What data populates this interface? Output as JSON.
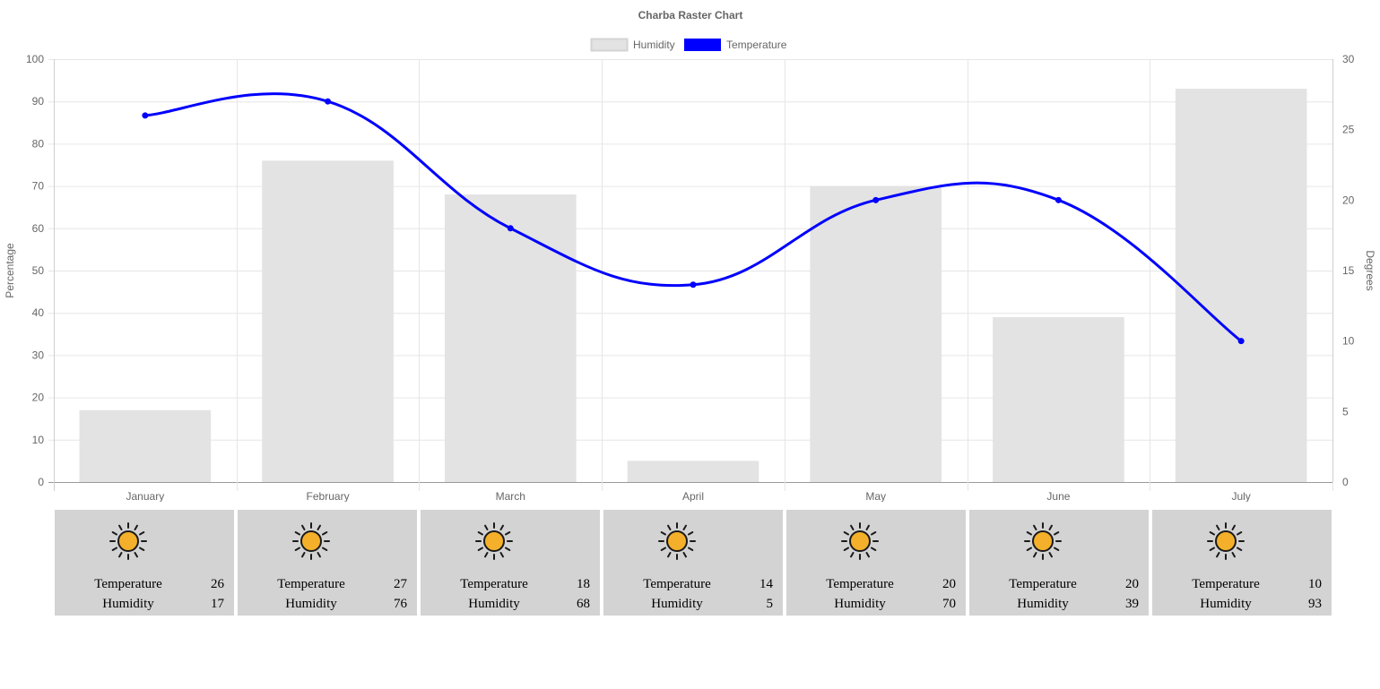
{
  "chart_data": {
    "type": "bar",
    "title": "Charba Raster Chart",
    "categories": [
      "January",
      "February",
      "March",
      "April",
      "May",
      "June",
      "July"
    ],
    "series": [
      {
        "name": "Humidity",
        "type": "bar",
        "axis": "left",
        "color": "#e3e3e3",
        "border_color": "#d3d3d3",
        "values": [
          17,
          76,
          68,
          5,
          70,
          39,
          93
        ]
      },
      {
        "name": "Temperature",
        "type": "line",
        "axis": "right",
        "color": "#0000ff",
        "smooth": true,
        "values": [
          26,
          27,
          18,
          14,
          20,
          20,
          10
        ]
      }
    ],
    "ylabel": "Percentage",
    "y2label": "Degrees",
    "ylim": [
      0,
      100
    ],
    "y2lim": [
      0,
      30
    ],
    "yticks": [
      0,
      10,
      20,
      30,
      40,
      50,
      60,
      70,
      80,
      90,
      100
    ],
    "y2ticks": [
      0,
      5,
      10,
      15,
      20,
      25,
      30
    ],
    "grid": true,
    "legend_position": "top-center"
  },
  "weather": {
    "icon": "sun-icon",
    "temperature_label": "Temperature",
    "humidity_label": "Humidity",
    "colors": {
      "card": "#d3d3d3",
      "sun_fill": "#f4b02a",
      "sun_stroke": "#1a1a1a"
    }
  }
}
